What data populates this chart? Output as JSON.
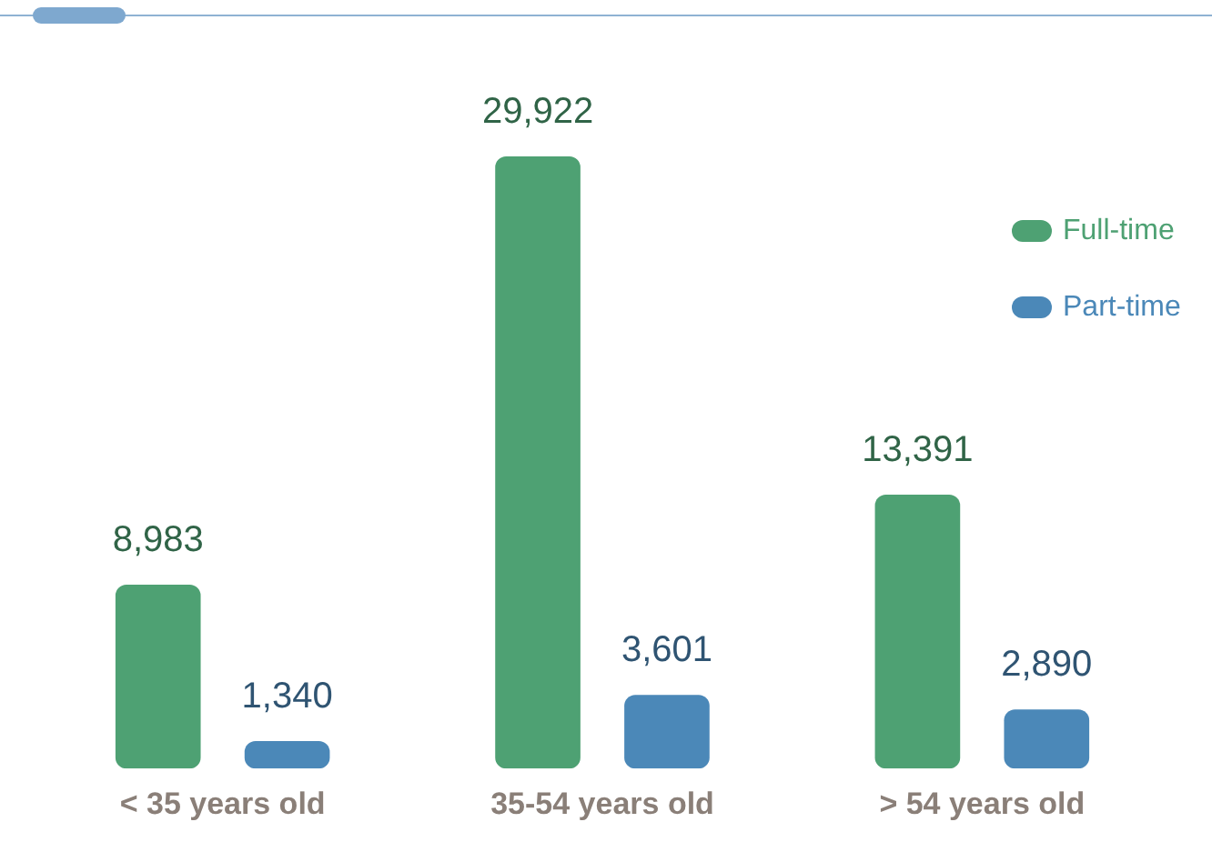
{
  "chart_data": {
    "type": "bar",
    "categories": [
      "< 35 years old",
      "35-54 years old",
      "> 54 years old"
    ],
    "series": [
      {
        "name": "Full-time",
        "color": "#4ea173",
        "values": [
          8983,
          29922,
          13391
        ],
        "value_labels": [
          "8,983",
          "29,922",
          "13,391"
        ]
      },
      {
        "name": "Part-time",
        "color": "#4b88b8",
        "values": [
          1340,
          3601,
          2890
        ],
        "value_labels": [
          "1,340",
          "3,601",
          "2,890"
        ]
      }
    ],
    "legend": "top right",
    "grid": false
  }
}
